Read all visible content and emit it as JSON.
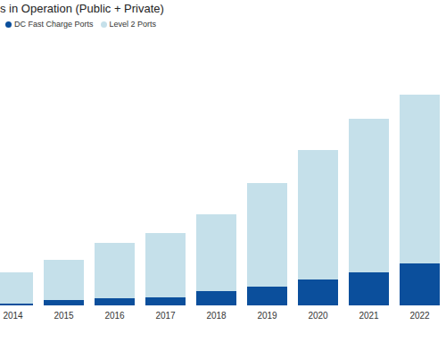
{
  "chart_data": {
    "type": "bar",
    "title": "s in Operation (Public + Private)",
    "categories": [
      "2014",
      "2015",
      "2016",
      "2017",
      "2018",
      "2019",
      "2020",
      "2021",
      "2022"
    ],
    "series": [
      {
        "name": "DC Fast Charge Ports",
        "color": "#0b4f9c",
        "values": [
          2,
          6,
          8,
          9,
          16,
          21,
          29,
          37,
          47
        ]
      },
      {
        "name": "Level 2 Ports",
        "color": "#c5e0ea",
        "values": [
          35,
          45,
          62,
          72,
          86,
          116,
          145,
          172,
          189
        ]
      }
    ],
    "stacked": true,
    "ylim": [
      0,
      282
    ],
    "yticks": [],
    "tick_labels": "x",
    "legend": "top-left"
  }
}
